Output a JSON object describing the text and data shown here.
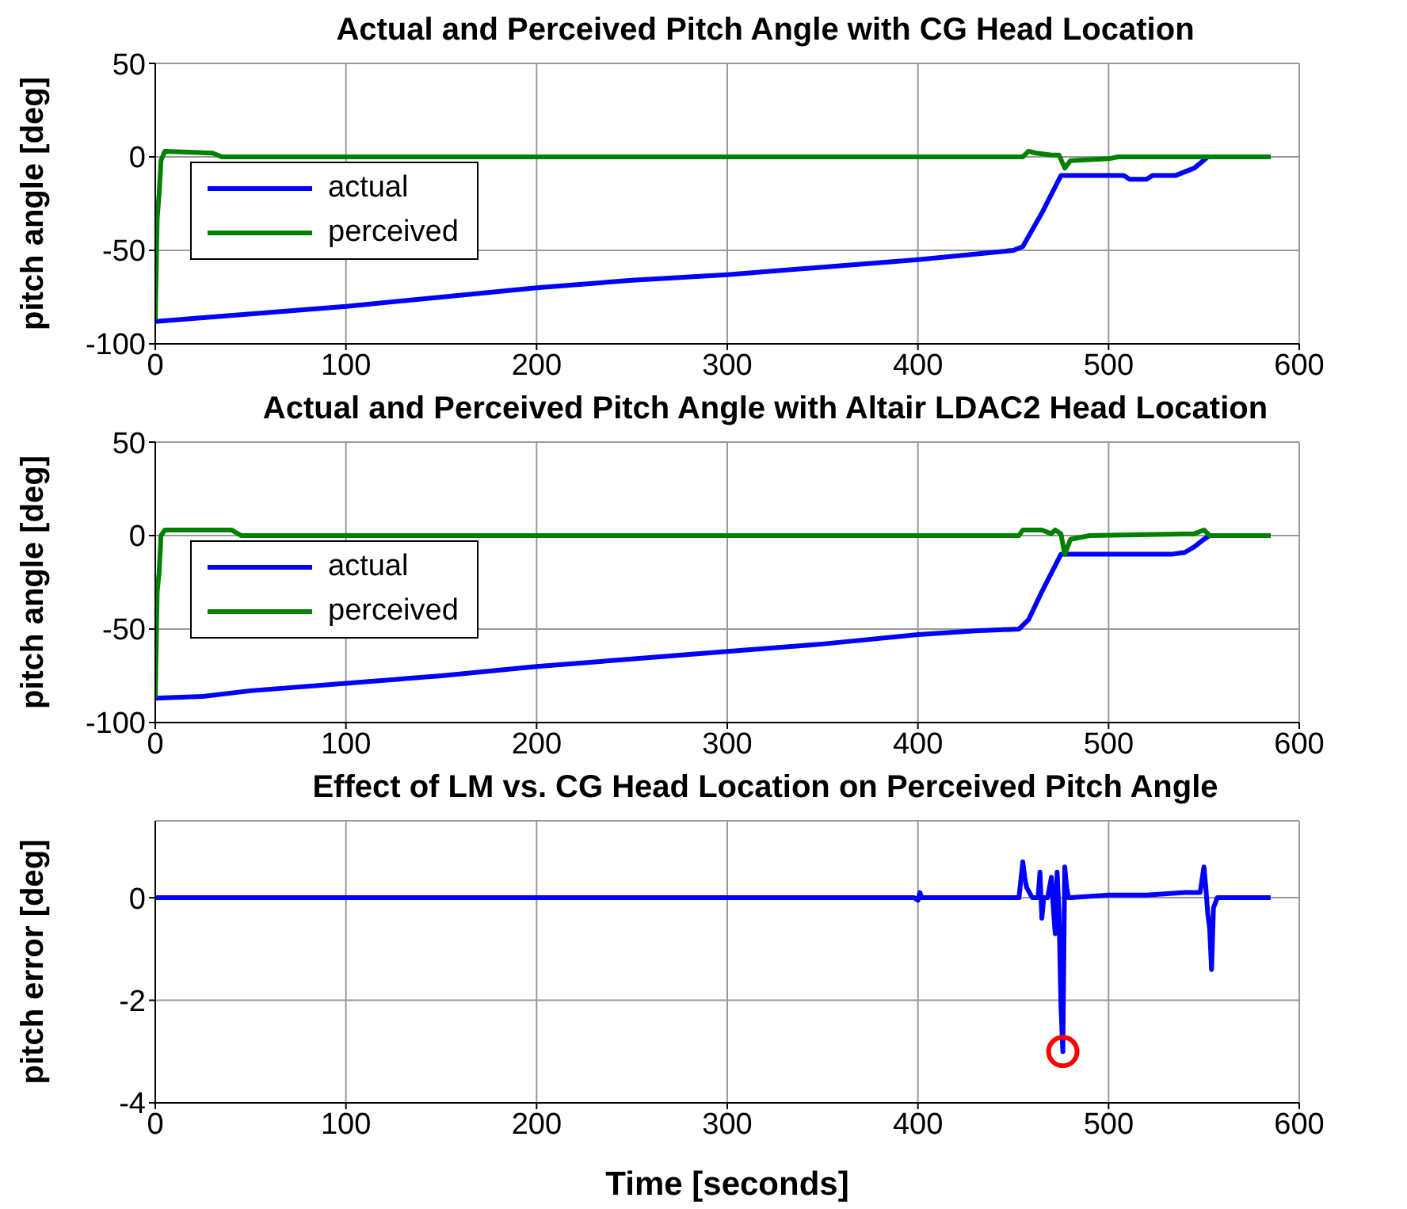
{
  "chart_data": [
    {
      "type": "line",
      "title": "Actual and Perceived Pitch Angle with CG Head Location",
      "ylabel": "pitch angle [deg]",
      "xlim": [
        0,
        600
      ],
      "xticks": [
        0,
        100,
        200,
        300,
        400,
        500,
        600
      ],
      "ylim": [
        -100,
        50
      ],
      "yticks": [
        -100,
        -50,
        0,
        50
      ],
      "grid": true,
      "legend": "left",
      "line_style": "solid",
      "series": [
        {
          "name": "actual",
          "color": "#0000ff",
          "x": [
            0,
            25,
            50,
            100,
            150,
            200,
            250,
            300,
            350,
            400,
            430,
            450,
            455,
            465,
            475,
            508,
            511,
            520,
            523,
            535,
            545,
            552,
            585
          ],
          "values": [
            -88,
            -86,
            -84,
            -80,
            -75,
            -70,
            -66,
            -63,
            -59,
            -55,
            -52,
            -50,
            -48,
            -30,
            -10,
            -10,
            -12,
            -12,
            -10,
            -10,
            -6,
            0,
            0
          ]
        },
        {
          "name": "perceived",
          "color": "#008000",
          "x": [
            0,
            1,
            2,
            3,
            5,
            30,
            35,
            455,
            458,
            462,
            470,
            474,
            477,
            480,
            500,
            505,
            585
          ],
          "values": [
            -87,
            -33,
            -20,
            -2,
            3,
            2,
            0,
            0,
            3,
            2,
            1,
            1,
            -6,
            -2,
            -1,
            0,
            0
          ]
        }
      ]
    },
    {
      "type": "line",
      "title": "Actual and Perceived Pitch Angle with Altair LDAC2 Head Location",
      "ylabel": "pitch angle [deg]",
      "xlim": [
        0,
        600
      ],
      "xticks": [
        0,
        100,
        200,
        300,
        400,
        500,
        600
      ],
      "ylim": [
        -100,
        50
      ],
      "yticks": [
        -100,
        -50,
        0,
        50
      ],
      "grid": true,
      "legend": "left",
      "line_style": "solid",
      "series": [
        {
          "name": "actual",
          "color": "#0000ff",
          "x": [
            0,
            25,
            50,
            100,
            150,
            200,
            250,
            300,
            350,
            400,
            430,
            453,
            458,
            465,
            475,
            533,
            540,
            545,
            550,
            553,
            585
          ],
          "values": [
            -87,
            -86,
            -83,
            -79,
            -75,
            -70,
            -66,
            -62,
            -58,
            -53,
            -51,
            -50,
            -45,
            -30,
            -10,
            -10,
            -9,
            -6,
            -2,
            0,
            0
          ]
        },
        {
          "name": "perceived",
          "color": "#008000",
          "x": [
            0,
            1,
            2,
            3,
            5,
            40,
            45,
            453,
            455,
            465,
            470,
            472,
            475,
            477,
            480,
            490,
            545,
            550,
            553,
            585
          ],
          "values": [
            -87,
            -30,
            -20,
            0,
            3,
            3,
            0,
            0,
            3,
            3,
            1,
            3,
            1,
            -10,
            -2,
            0,
            1,
            3,
            0,
            0
          ]
        }
      ]
    },
    {
      "type": "line",
      "title": "Effect of LM vs. CG Head Location on Perceived Pitch Angle",
      "xlabel": "Time [seconds]",
      "ylabel": "pitch error [deg]",
      "xlim": [
        0,
        600
      ],
      "xticks": [
        0,
        100,
        200,
        300,
        400,
        500,
        600
      ],
      "ylim": [
        -4,
        1.5
      ],
      "yticks": [
        -4,
        -2,
        0
      ],
      "grid": true,
      "line_style": "solid",
      "series": [
        {
          "color": "#0000ff",
          "x": [
            0,
            398,
            400,
            401,
            402,
            453,
            455,
            456,
            457,
            460,
            463,
            464,
            465,
            466,
            468,
            470,
            471,
            472,
            473,
            474,
            475,
            476,
            477,
            478,
            479,
            480,
            500,
            520,
            540,
            548,
            550,
            551,
            552,
            553,
            554,
            555,
            557,
            585
          ],
          "values": [
            0,
            0,
            -0.05,
            0.1,
            0,
            0,
            0.7,
            0.4,
            0.2,
            0,
            0,
            0.5,
            -0.4,
            0,
            0,
            0.4,
            -0.2,
            -0.7,
            0.5,
            -0.3,
            -2.1,
            -3,
            0.6,
            0.2,
            0,
            0,
            0.05,
            0.05,
            0.1,
            0.1,
            0.6,
            0.2,
            -0.3,
            -0.6,
            -1.4,
            -0.2,
            0,
            0
          ]
        },
        {
          "type": "scatter",
          "color": "#ff0000",
          "marker": "circle",
          "x": [
            476
          ],
          "values": [
            -3
          ]
        }
      ]
    }
  ]
}
